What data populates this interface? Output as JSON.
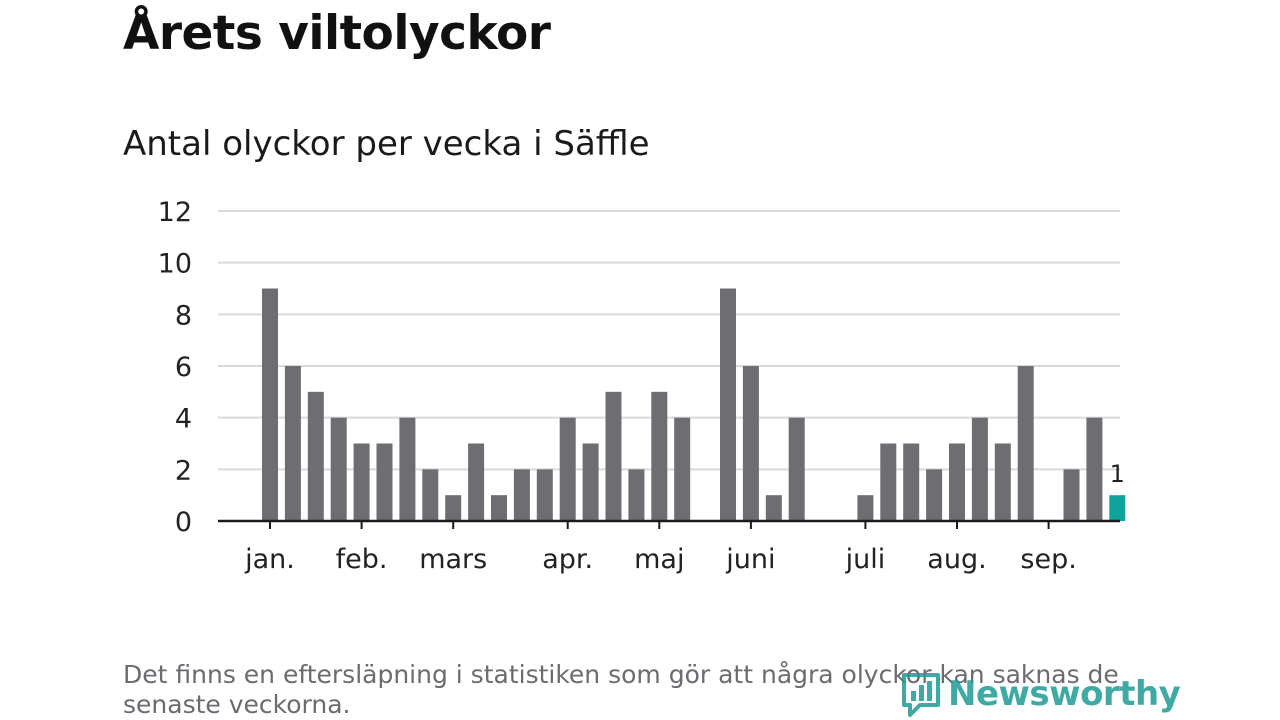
{
  "title": "Årets viltolyckor",
  "subtitle": "Antal olyckor per vecka i Säffle",
  "footnote": "Det finns en eftersläpning i statistiken som gör att några olyckor kan saknas de senaste veckorna.",
  "brand": {
    "name": "Newsworthy",
    "icon": "newsworthy-logo-icon",
    "color": "#1e9c95"
  },
  "colors": {
    "bar": "#6e6d72",
    "highlight": "#10a39b",
    "grid": "#d9d9d9",
    "axis": "#1a1a1a"
  },
  "chart_data": {
    "type": "bar",
    "title": "Antal olyckor per vecka i Säffle",
    "xlabel": "",
    "ylabel": "",
    "ylim": [
      0,
      12
    ],
    "yticks": [
      "0",
      "2",
      "4",
      "6",
      "8",
      "10",
      "12"
    ],
    "grid": true,
    "weeks": [
      1,
      2,
      3,
      4,
      5,
      6,
      7,
      8,
      9,
      10,
      11,
      12,
      13,
      14,
      15,
      16,
      17,
      18,
      19,
      20,
      21,
      22,
      23,
      24,
      25,
      26,
      27,
      28,
      29,
      30,
      31,
      32,
      33,
      34,
      35,
      36,
      37,
      38
    ],
    "values": [
      9,
      6,
      5,
      4,
      3,
      3,
      4,
      2,
      1,
      3,
      1,
      2,
      2,
      4,
      3,
      5,
      2,
      5,
      4,
      0,
      9,
      6,
      1,
      4,
      0,
      0,
      1,
      3,
      3,
      2,
      3,
      4,
      3,
      6,
      0,
      2,
      4,
      1
    ],
    "highlight_index": 37,
    "highlight_label": "1",
    "month_labels": [
      {
        "label": "jan.",
        "week": 1
      },
      {
        "label": "feb.",
        "week": 5
      },
      {
        "label": "mars",
        "week": 9
      },
      {
        "label": "apr.",
        "week": 14
      },
      {
        "label": "maj",
        "week": 18
      },
      {
        "label": "juni",
        "week": 22
      },
      {
        "label": "juli",
        "week": 27
      },
      {
        "label": "aug.",
        "week": 31
      },
      {
        "label": "sep.",
        "week": 35
      }
    ]
  }
}
